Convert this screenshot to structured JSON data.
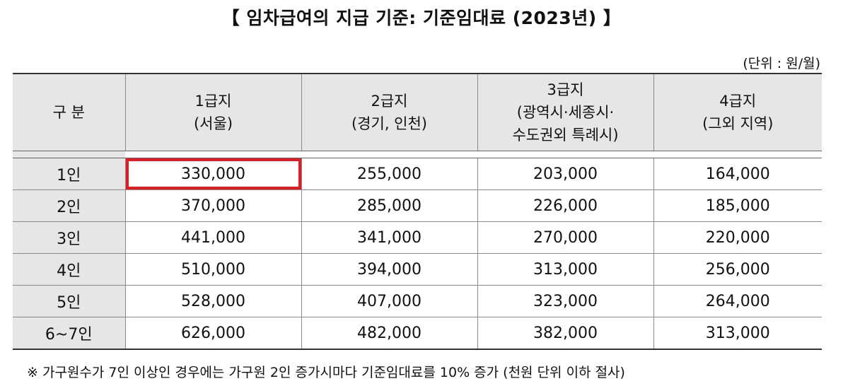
{
  "title": "【 임차급여의 지급 기준: 기준임대료 (2023년) 】",
  "unit": "(단위 : 원/월)",
  "table": {
    "headers": [
      {
        "lines": [
          "구 분"
        ]
      },
      {
        "lines": [
          "1급지",
          "(서울)"
        ]
      },
      {
        "lines": [
          "2급지",
          "(경기, 인천)"
        ]
      },
      {
        "lines": [
          "3급지",
          "(광역시·세종시·",
          "수도권외 특례시)"
        ]
      },
      {
        "lines": [
          "4급지",
          "(그외 지역)"
        ]
      }
    ],
    "rows": [
      {
        "label": "1인",
        "values": [
          "330,000",
          "255,000",
          "203,000",
          "164,000"
        ]
      },
      {
        "label": "2인",
        "values": [
          "370,000",
          "285,000",
          "226,000",
          "185,000"
        ]
      },
      {
        "label": "3인",
        "values": [
          "441,000",
          "341,000",
          "270,000",
          "220,000"
        ]
      },
      {
        "label": "4인",
        "values": [
          "510,000",
          "394,000",
          "313,000",
          "256,000"
        ]
      },
      {
        "label": "5인",
        "values": [
          "528,000",
          "407,000",
          "323,000",
          "264,000"
        ]
      },
      {
        "label": "6~7인",
        "values": [
          "626,000",
          "482,000",
          "382,000",
          "313,000"
        ]
      }
    ]
  },
  "highlight_color": "#e31b23",
  "note": "※ 가구원수가 7인 이상인 경우에는 가구원 2인 증가시마다 기준임대료를 10% 증가 (천원 단위 이하 절사)"
}
